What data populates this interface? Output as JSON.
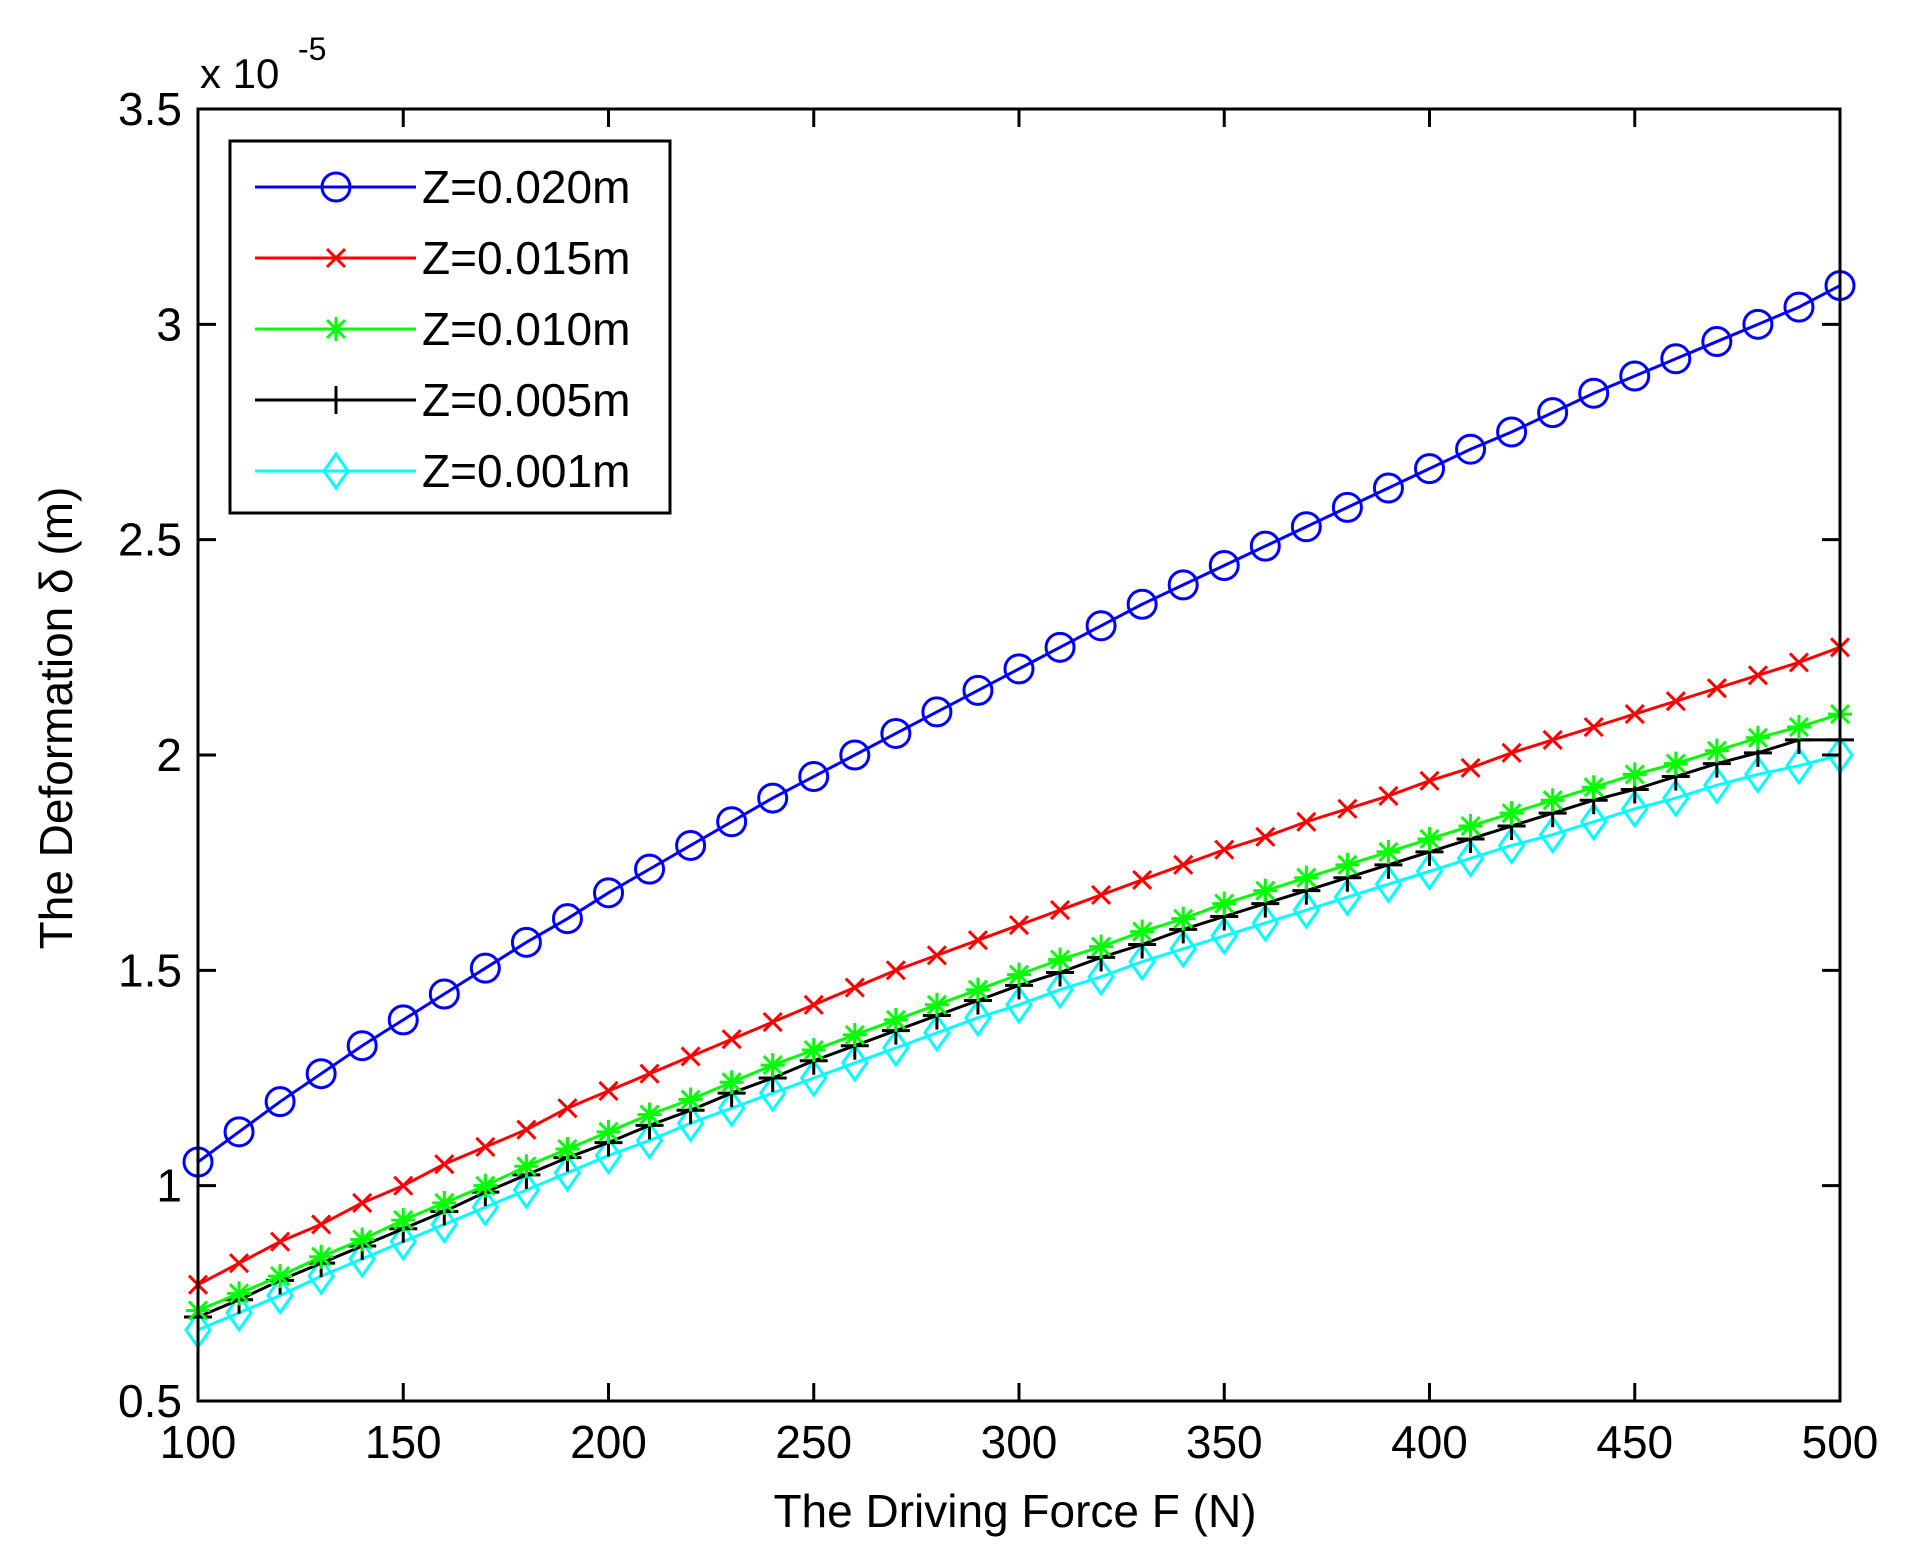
{
  "chart_data": {
    "type": "line",
    "title": "",
    "xlabel": "The Driving Force F (N)",
    "ylabel": "The Deformation δ (m)",
    "y_multiplier": {
      "base": "x 10",
      "exponent": "-5"
    },
    "xlim": [
      100,
      500
    ],
    "ylim": [
      0.5,
      3.5
    ],
    "xticks": [
      100,
      150,
      200,
      250,
      300,
      350,
      400,
      450,
      500
    ],
    "xtick_labels": [
      "100",
      "150",
      "200",
      "250",
      "300",
      "350",
      "400",
      "450",
      "500"
    ],
    "yticks": [
      0.5,
      1,
      1.5,
      2,
      2.5,
      3,
      3.5
    ],
    "ytick_labels": [
      "0.5",
      "1",
      "1.5",
      "2",
      "2.5",
      "3",
      "3.5"
    ],
    "grid": false,
    "legend_position": "top-left",
    "x": [
      100,
      110,
      120,
      130,
      140,
      150,
      160,
      170,
      180,
      190,
      200,
      210,
      220,
      230,
      240,
      250,
      260,
      270,
      280,
      290,
      300,
      310,
      320,
      330,
      340,
      350,
      360,
      370,
      380,
      390,
      400,
      410,
      420,
      430,
      440,
      450,
      460,
      470,
      480,
      490,
      500
    ],
    "series": [
      {
        "name": "Z=0.020m",
        "color": "#0000ff",
        "marker": "circle",
        "values": [
          1.055,
          1.125,
          1.195,
          1.26,
          1.325,
          1.385,
          1.445,
          1.505,
          1.565,
          1.62,
          1.68,
          1.735,
          1.79,
          1.845,
          1.9,
          1.95,
          2.0,
          2.05,
          2.1,
          2.15,
          2.2,
          2.25,
          2.3,
          2.35,
          2.395,
          2.44,
          2.485,
          2.53,
          2.575,
          2.62,
          2.665,
          2.71,
          2.75,
          2.795,
          2.84,
          2.88,
          2.92,
          2.96,
          3.0,
          3.04,
          3.09
        ]
      },
      {
        "name": "Z=0.015m",
        "color": "#ff0000",
        "marker": "x",
        "values": [
          0.77,
          0.82,
          0.87,
          0.91,
          0.96,
          1.0,
          1.05,
          1.09,
          1.13,
          1.18,
          1.22,
          1.26,
          1.3,
          1.34,
          1.38,
          1.42,
          1.46,
          1.5,
          1.535,
          1.57,
          1.605,
          1.64,
          1.675,
          1.71,
          1.745,
          1.78,
          1.81,
          1.845,
          1.875,
          1.905,
          1.94,
          1.97,
          2.005,
          2.035,
          2.065,
          2.095,
          2.125,
          2.155,
          2.185,
          2.215,
          2.25
        ]
      },
      {
        "name": "Z=0.010m",
        "color": "#00ff00",
        "marker": "star",
        "values": [
          0.71,
          0.75,
          0.79,
          0.835,
          0.875,
          0.92,
          0.96,
          1.0,
          1.045,
          1.085,
          1.125,
          1.165,
          1.2,
          1.24,
          1.28,
          1.315,
          1.35,
          1.385,
          1.42,
          1.455,
          1.49,
          1.525,
          1.555,
          1.59,
          1.62,
          1.655,
          1.685,
          1.715,
          1.745,
          1.775,
          1.805,
          1.835,
          1.865,
          1.895,
          1.925,
          1.955,
          1.98,
          2.01,
          2.04,
          2.065,
          2.095
        ]
      },
      {
        "name": "Z=0.005m",
        "color": "#000000",
        "marker": "plus",
        "values": [
          0.695,
          0.735,
          0.78,
          0.82,
          0.86,
          0.9,
          0.94,
          0.985,
          1.025,
          1.065,
          1.1,
          1.14,
          1.175,
          1.215,
          1.25,
          1.29,
          1.325,
          1.36,
          1.395,
          1.43,
          1.465,
          1.495,
          1.53,
          1.56,
          1.595,
          1.625,
          1.655,
          1.685,
          1.715,
          1.745,
          1.775,
          1.805,
          1.835,
          1.865,
          1.895,
          1.92,
          1.95,
          1.98,
          2.005,
          2.035,
          2.035
        ]
      },
      {
        "name": "Z=0.001m",
        "color": "#00ffff",
        "marker": "diamond",
        "values": [
          0.665,
          0.705,
          0.745,
          0.79,
          0.83,
          0.87,
          0.91,
          0.95,
          0.99,
          1.03,
          1.07,
          1.105,
          1.145,
          1.18,
          1.215,
          1.25,
          1.285,
          1.32,
          1.355,
          1.39,
          1.42,
          1.455,
          1.485,
          1.52,
          1.55,
          1.58,
          1.61,
          1.64,
          1.67,
          1.7,
          1.73,
          1.76,
          1.79,
          1.815,
          1.845,
          1.875,
          1.9,
          1.93,
          1.955,
          1.975,
          2.0
        ]
      }
    ]
  }
}
